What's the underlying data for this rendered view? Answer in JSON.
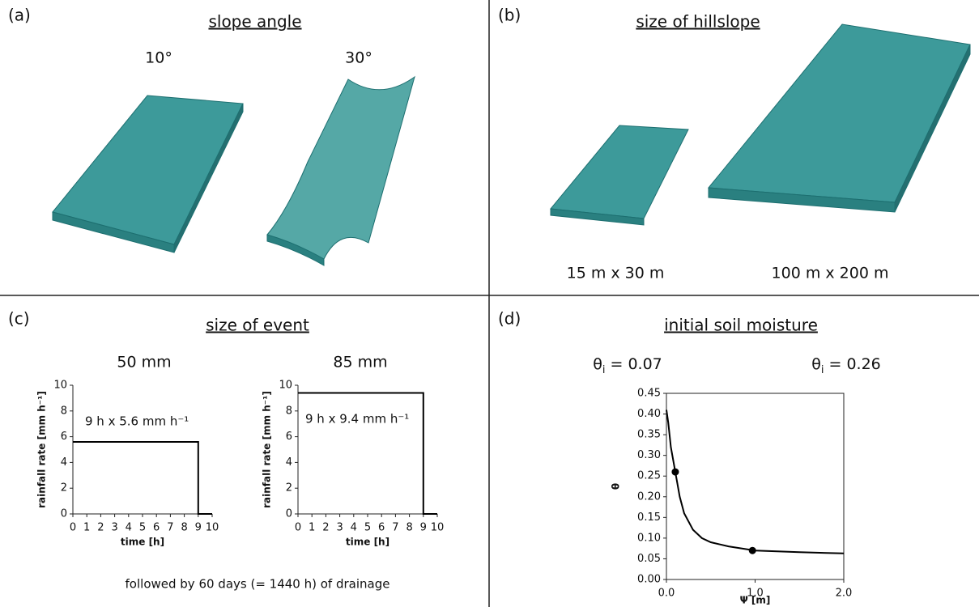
{
  "panels": [
    {
      "label": "(a)",
      "title": "slope angle",
      "captions": [
        "10°",
        "30°"
      ]
    },
    {
      "label": "(b)",
      "title": "size of hillslope",
      "captions": [
        "15 m x 30 m",
        "100 m x 200 m"
      ]
    },
    {
      "label": "(c)",
      "title": "size of event",
      "captions": [
        "50 mm",
        "85 mm"
      ],
      "note": "followed by 60 days (= 1440 h) of drainage"
    },
    {
      "label": "(d)",
      "title": "initial soil moisture",
      "captions": [
        {
          "symbol": "θ",
          "subscript": "i",
          "text": " = 0.07"
        },
        {
          "symbol": "θ",
          "subscript": "i",
          "text": " = 0.26"
        }
      ]
    }
  ],
  "chart_data": [
    {
      "type": "line",
      "x": [
        0,
        9,
        9,
        10
      ],
      "values": [
        5.6,
        5.6,
        0,
        0
      ],
      "color": "#000000",
      "xlim": [
        0,
        10
      ],
      "xticks": [
        0,
        1,
        2,
        3,
        4,
        5,
        6,
        7,
        8,
        9,
        10
      ],
      "ylim": [
        0,
        10
      ],
      "yticks": [
        0,
        2,
        4,
        6,
        8,
        10
      ],
      "xlabel": "time [h]",
      "ylabel": "rainfall rate [mm h⁻¹]",
      "annotation": "9 h x 5.6 mm h⁻¹"
    },
    {
      "type": "line",
      "x": [
        0,
        9,
        9,
        10
      ],
      "values": [
        9.4,
        9.4,
        0,
        0
      ],
      "color": "#000000",
      "xlim": [
        0,
        10
      ],
      "xticks": [
        0,
        1,
        2,
        3,
        4,
        5,
        6,
        7,
        8,
        9,
        10
      ],
      "ylim": [
        0,
        10
      ],
      "yticks": [
        0,
        2,
        4,
        6,
        8,
        10
      ],
      "xlabel": "time [h]",
      "ylabel": "rainfall rate [mm h⁻¹]",
      "annotation": "9 h x 9.4 mm h⁻¹"
    },
    {
      "type": "line",
      "x": [
        0,
        0.02,
        0.05,
        0.1,
        0.15,
        0.2,
        0.3,
        0.4,
        0.5,
        0.7,
        1.0,
        1.5,
        2.0
      ],
      "values": [
        0.41,
        0.38,
        0.32,
        0.26,
        0.2,
        0.16,
        0.12,
        0.1,
        0.09,
        0.08,
        0.07,
        0.066,
        0.063
      ],
      "color": "#000000",
      "points": {
        "x": [
          0.1,
          0.97
        ],
        "values": [
          0.26,
          0.07
        ]
      },
      "xlim": [
        0,
        2
      ],
      "xticks": [
        {
          "value": 0,
          "label": "0.0"
        },
        {
          "value": 1,
          "label": "1.0"
        },
        {
          "value": 2,
          "label": "2.0"
        }
      ],
      "ylim": [
        0,
        0.45
      ],
      "yticks": [
        {
          "value": 0,
          "label": "0.00"
        },
        {
          "value": 0.05,
          "label": "0.05"
        },
        {
          "value": 0.1,
          "label": "0.10"
        },
        {
          "value": 0.15,
          "label": "0.15"
        },
        {
          "value": 0.2,
          "label": "0.20"
        },
        {
          "value": 0.25,
          "label": "0.25"
        },
        {
          "value": 0.3,
          "label": "0.30"
        },
        {
          "value": 0.35,
          "label": "0.35"
        },
        {
          "value": 0.4,
          "label": "0.40"
        },
        {
          "value": 0.45,
          "label": "0.45"
        }
      ],
      "xlabel": "Ψ [m]",
      "ylabel": "θ",
      "frame": true
    }
  ]
}
